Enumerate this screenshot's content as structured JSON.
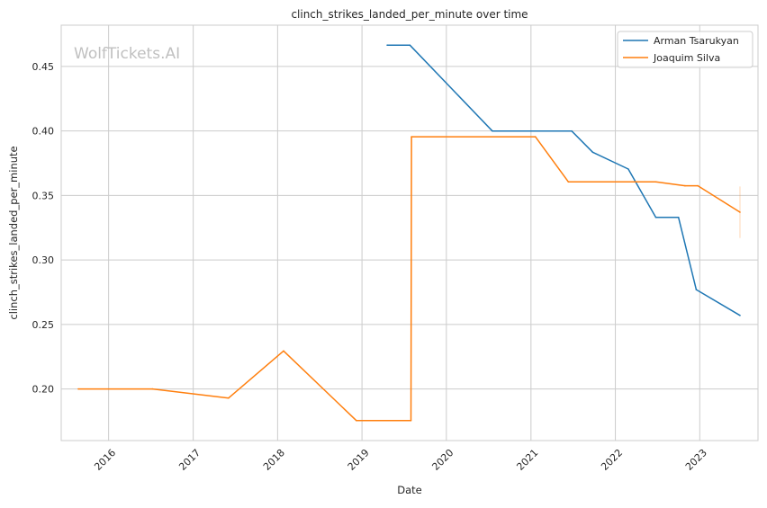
{
  "chart_data": {
    "type": "line",
    "title": "clinch_strikes_landed_per_minute over time",
    "xlabel": "Date",
    "ylabel": "clinch_strikes_landed_per_minute",
    "watermark": "WolfTickets.AI",
    "x_ticks": [
      "2016",
      "2017",
      "2018",
      "2019",
      "2020",
      "2021",
      "2022",
      "2023"
    ],
    "y_ticks": [
      "0.20",
      "0.25",
      "0.30",
      "0.35",
      "0.40",
      "0.45"
    ],
    "xlim": [
      "2015-06-10",
      "2023-09-10"
    ],
    "ylim": [
      0.16,
      0.482
    ],
    "grid": true,
    "legend_position": "top-right",
    "series": [
      {
        "name": "Arman Tsarukyan",
        "color": "#1f77b4",
        "points": [
          [
            "2019-04-20",
            0.4665
          ],
          [
            "2019-07-27",
            0.4665
          ],
          [
            "2020-07-18",
            0.4
          ],
          [
            "2021-06-26",
            0.4
          ],
          [
            "2021-09-25",
            0.3835
          ],
          [
            "2022-02-26",
            0.3705
          ],
          [
            "2022-06-25",
            0.333
          ],
          [
            "2022-10-01",
            0.333
          ],
          [
            "2022-12-17",
            0.277
          ],
          [
            "2023-06-24",
            0.257
          ]
        ]
      },
      {
        "name": "Joaquim Silva",
        "color": "#ff7f0e",
        "points": [
          [
            "2015-08-23",
            0.2
          ],
          [
            "2016-07-09",
            0.2
          ],
          [
            "2017-06-03",
            0.193
          ],
          [
            "2018-01-27",
            0.2295
          ],
          [
            "2018-12-08",
            0.1755
          ],
          [
            "2019-08-01",
            0.1755
          ],
          [
            "2019-08-03",
            0.3955
          ],
          [
            "2021-01-20",
            0.3955
          ],
          [
            "2021-06-12",
            0.3605
          ],
          [
            "2022-06-25",
            0.3605
          ],
          [
            "2022-10-29",
            0.3575
          ],
          [
            "2022-12-24",
            0.3575
          ],
          [
            "2023-06-24",
            0.337
          ]
        ]
      }
    ]
  }
}
